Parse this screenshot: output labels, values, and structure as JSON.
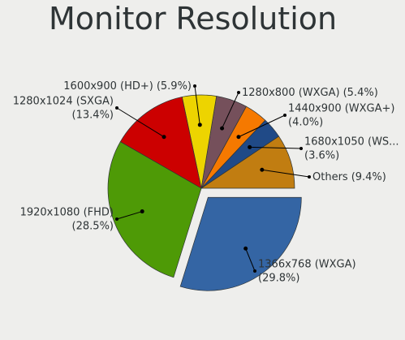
{
  "chart_data": {
    "type": "pie",
    "title": "Monitor Resolution",
    "categories": [
      "Others",
      "1680x1050 (WS...",
      "1440x900 (WXGA+)",
      "1280x800 (WXGA)",
      "1600x900 (HD+)",
      "1280x1024 (SXGA)",
      "1920x1080 (FHD)",
      "1366x768 (WXGA)"
    ],
    "values": [
      9.4,
      3.6,
      4.0,
      5.4,
      5.9,
      13.4,
      28.5,
      29.8
    ],
    "value_labels": [
      "(9.4%)",
      "(3.6%)",
      "(4.0%)",
      "(5.4%)",
      "(5.9%)",
      "(13.4%)",
      "(28.5%)",
      "(29.8%)"
    ],
    "colors": [
      "#c17d11",
      "#204a87",
      "#f57900",
      "#75505b",
      "#edd400",
      "#cc0000",
      "#4e9a06",
      "#3465a4"
    ],
    "exploded": [
      false,
      false,
      false,
      false,
      false,
      false,
      false,
      true
    ]
  }
}
